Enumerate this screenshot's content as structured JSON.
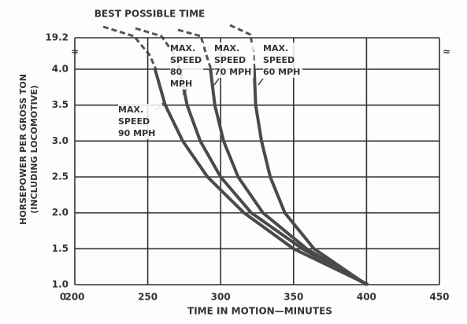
{
  "chart_data": {
    "type": "line",
    "annotation": "BEST POSSIBLE TIME",
    "xlabel": "TIME IN MOTION—MINUTES",
    "ylabel": [
      "HORSEPOWER PER GROSS TON",
      "(INCLUDING LOCOMOTIVE)"
    ],
    "xlim": [
      0,
      450
    ],
    "x_break": [
      0,
      200
    ],
    "xticks": [
      0,
      200,
      250,
      300,
      350,
      400,
      450
    ],
    "ylim": [
      1,
      19.2
    ],
    "y_break": [
      4,
      19.2
    ],
    "yticks": [
      {
        "value": 1,
        "label": "1.0"
      },
      1.5,
      {
        "value": 2,
        "label": "2.0"
      },
      2.5,
      {
        "value": 3,
        "label": "3.0"
      },
      3.5,
      {
        "value": 4,
        "label": "4.0"
      },
      19.2
    ],
    "grid": true,
    "series": [
      {
        "name": "MAX. SPEED 90 MPH",
        "color": "#4a4a4a",
        "x": [
          255,
          262,
          274,
          291,
          316,
          350,
          401
        ],
        "values": [
          4.0,
          3.5,
          3.0,
          2.5,
          2.0,
          1.5,
          1.0
        ]
      },
      {
        "name": "MAX. SPEED 80 MPH",
        "color": "#4a4a4a",
        "x": [
          272,
          277,
          286,
          300,
          321,
          356,
          401
        ],
        "values": [
          4.0,
          3.5,
          3.0,
          2.5,
          2.0,
          1.5,
          1.0
        ]
      },
      {
        "name": "MAX. SPEED 70 MPH",
        "color": "#4a4a4a",
        "x": [
          293,
          296,
          302,
          312,
          329,
          359,
          400
        ],
        "values": [
          4.0,
          3.5,
          3.0,
          2.5,
          2.0,
          1.5,
          1.0
        ]
      },
      {
        "name": "MAX. SPEED 60 MPH",
        "color": "#4a4a4a",
        "x": [
          323,
          324,
          328,
          334,
          344,
          364,
          400
        ],
        "values": [
          4.0,
          3.5,
          3.0,
          2.5,
          2.0,
          1.5,
          1.0
        ]
      }
    ]
  }
}
